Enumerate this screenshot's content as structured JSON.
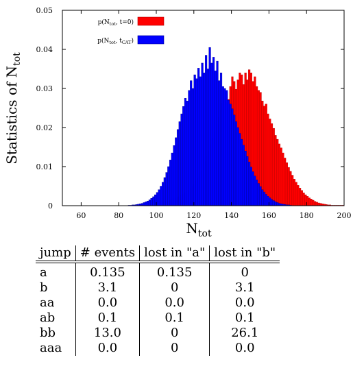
{
  "chart_data": {
    "type": "histogram",
    "xlabel": "N",
    "xlabel_sub": "tot",
    "ylabel": "Statistics of N",
    "ylabel_sub": "tot",
    "xlim": [
      50,
      200
    ],
    "ylim": [
      0,
      0.05
    ],
    "x_ticks": [
      60,
      80,
      100,
      120,
      140,
      160,
      180,
      200
    ],
    "y_ticks": [
      0,
      0.01,
      0.02,
      0.03,
      0.04,
      0.05
    ],
    "y_tick_labels": [
      "0",
      "0.01",
      "0.02",
      "0.03",
      "0.04",
      "0.05"
    ],
    "legend_position": "top-left",
    "bin_width": 1,
    "series": [
      {
        "name": "p(N_tot, t=0)",
        "legend_parts": [
          "p(N",
          "tot",
          ", t=0)"
        ],
        "color": "#ff0000",
        "edge_color": "#b00000",
        "x_start": 95,
        "values": [
          0.0002,
          0.0002,
          0.0003,
          0.0003,
          0.0004,
          0.0005,
          0.0006,
          0.0007,
          0.0008,
          0.001,
          0.0011,
          0.0012,
          0.0014,
          0.0016,
          0.0018,
          0.002,
          0.0022,
          0.0024,
          0.0027,
          0.003,
          0.0033,
          0.0036,
          0.004,
          0.0045,
          0.005,
          0.0056,
          0.0063,
          0.0071,
          0.008,
          0.009,
          0.0101,
          0.0113,
          0.0126,
          0.014,
          0.0156,
          0.0172,
          0.019,
          0.0208,
          0.0226,
          0.0245,
          0.0263,
          0.028,
          0.029,
          0.0272,
          0.0305,
          0.033,
          0.0318,
          0.0298,
          0.0322,
          0.034,
          0.0335,
          0.031,
          0.034,
          0.0322,
          0.0348,
          0.034,
          0.0318,
          0.033,
          0.0305,
          0.0295,
          0.029,
          0.0268,
          0.0255,
          0.026,
          0.0235,
          0.0222,
          0.021,
          0.0198,
          0.018,
          0.017,
          0.0158,
          0.0148,
          0.0135,
          0.0122,
          0.011,
          0.0098,
          0.0088,
          0.0078,
          0.0068,
          0.006,
          0.0052,
          0.0045,
          0.0039,
          0.0033,
          0.0028,
          0.0024,
          0.002,
          0.0017,
          0.0014,
          0.0011,
          0.0009,
          0.0007,
          0.0006,
          0.0005,
          0.0004,
          0.0003,
          0.0002,
          0.0002,
          0.0001,
          0.0001,
          0.0001,
          0.0001,
          0.0001,
          0.0001,
          0.0001
        ]
      },
      {
        "name": "p(N_tot, t_CAT)",
        "legend_parts": [
          "p(N",
          "tot",
          ", t",
          "CAT",
          ")"
        ],
        "color": "#0000ff",
        "edge_color": "#000090",
        "x_start": 85,
        "values": [
          0.0001,
          0.0001,
          0.0002,
          0.0002,
          0.0003,
          0.0004,
          0.0005,
          0.0006,
          0.0008,
          0.001,
          0.0012,
          0.0015,
          0.0019,
          0.0023,
          0.0028,
          0.0034,
          0.0041,
          0.005,
          0.006,
          0.0072,
          0.0085,
          0.01,
          0.0117,
          0.0135,
          0.0154,
          0.0174,
          0.0195,
          0.0215,
          0.0235,
          0.0254,
          0.0275,
          0.0268,
          0.0295,
          0.032,
          0.03,
          0.0335,
          0.0325,
          0.0352,
          0.033,
          0.0365,
          0.034,
          0.0385,
          0.035,
          0.0405,
          0.0365,
          0.038,
          0.0345,
          0.037,
          0.032,
          0.034,
          0.0305,
          0.03,
          0.0295,
          0.027,
          0.026,
          0.0248,
          0.0232,
          0.0215,
          0.02,
          0.0185,
          0.017,
          0.0155,
          0.014,
          0.0126,
          0.0112,
          0.0099,
          0.0087,
          0.0076,
          0.0066,
          0.0057,
          0.0049,
          0.0041,
          0.0035,
          0.0029,
          0.0024,
          0.002,
          0.0016,
          0.0013,
          0.001,
          0.0008,
          0.0006,
          0.0005,
          0.0004,
          0.0003,
          0.0002,
          0.0002,
          0.0001
        ]
      }
    ]
  },
  "table": {
    "headers": [
      "jump",
      "# events",
      "lost in \"a\"",
      "lost in \"b\""
    ],
    "rows": [
      [
        "a",
        "0.135",
        "0.135",
        "0"
      ],
      [
        "b",
        "3.1",
        "0",
        "3.1"
      ],
      [
        "aa",
        "0.0",
        "0.0",
        "0.0"
      ],
      [
        "ab",
        "0.1",
        "0.1",
        "0.1"
      ],
      [
        "bb",
        "13.0",
        "0",
        "26.1"
      ],
      [
        "aaa",
        "0.0",
        "0",
        "0.0"
      ]
    ]
  }
}
